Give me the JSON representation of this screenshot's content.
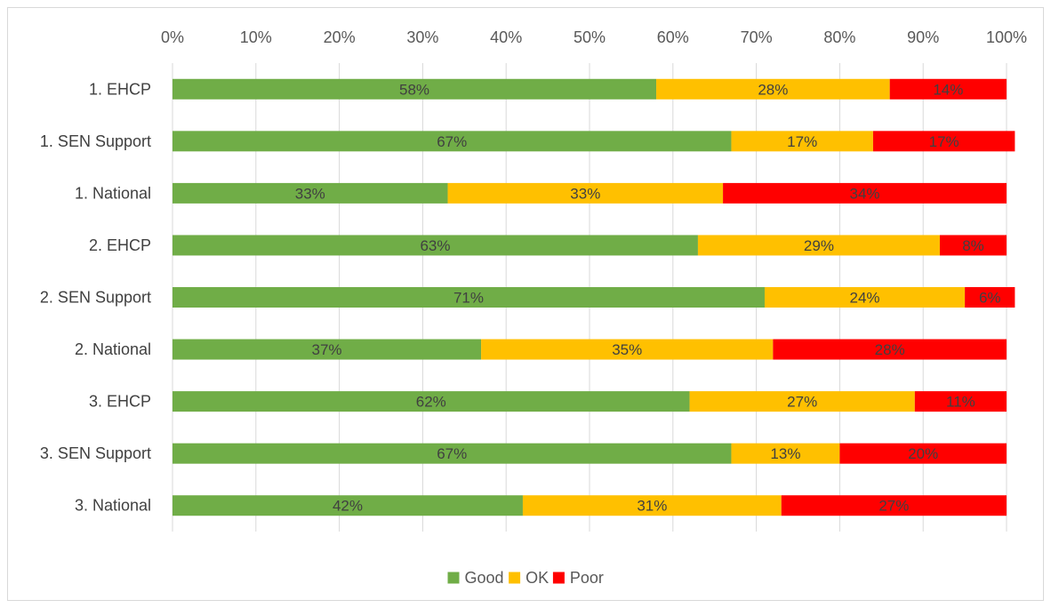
{
  "chart_data": {
    "type": "bar",
    "orientation": "horizontal",
    "stacking": "percent",
    "title": "",
    "xlabel": "",
    "ylabel": "",
    "xlim": [
      0,
      100
    ],
    "x_ticks": [
      "0%",
      "10%",
      "20%",
      "30%",
      "40%",
      "50%",
      "60%",
      "70%",
      "80%",
      "90%",
      "100%"
    ],
    "x_axis_position": "top",
    "grid": "vertical",
    "legend_placement": "bottom",
    "categories": [
      "1. EHCP",
      "1. SEN Support",
      "1. National",
      "2. EHCP",
      "2. SEN Support",
      "2. National",
      "3. EHCP",
      "3. SEN Support",
      "3. National"
    ],
    "series": [
      {
        "name": "Good",
        "color": "#70ad47",
        "values": [
          58,
          67,
          33,
          63,
          71,
          37,
          62,
          67,
          42
        ],
        "labels": [
          "58%",
          "67%",
          "33%",
          "63%",
          "71%",
          "37%",
          "62%",
          "67%",
          "42%"
        ]
      },
      {
        "name": "OK",
        "color": "#ffc000",
        "values": [
          28,
          17,
          33,
          29,
          24,
          35,
          27,
          13,
          31
        ],
        "labels": [
          "28%",
          "17%",
          "33%",
          "29%",
          "24%",
          "35%",
          "27%",
          "13%",
          "31%"
        ]
      },
      {
        "name": "Poor",
        "color": "#ff0000",
        "values": [
          14,
          17,
          34,
          8,
          6,
          28,
          11,
          20,
          27
        ],
        "labels": [
          "14%",
          "17%",
          "34%",
          "8%",
          "6%",
          "28%",
          "11%",
          "20%",
          "27%"
        ]
      }
    ]
  }
}
